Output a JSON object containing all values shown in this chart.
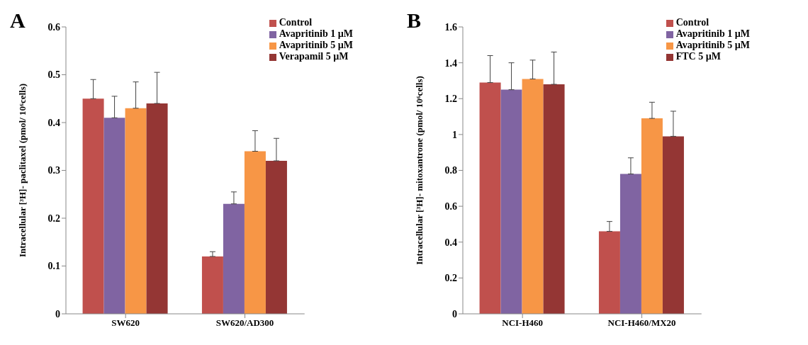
{
  "chart_data": [
    {
      "type": "bar",
      "title": "A",
      "ylabel": "Intracellular [³H]- paclitaxel (pmol/ 10⁶cells)",
      "categories": [
        "SW620",
        "SW620/AD300"
      ],
      "ylim": [
        0,
        0.6
      ],
      "yticks": [
        0,
        0.1,
        0.2,
        0.3,
        0.4,
        0.5,
        0.6
      ],
      "grid": false,
      "legend": "top right",
      "series": [
        {
          "name": "Control",
          "color": "#c0504d",
          "values": [
            0.45,
            0.12
          ],
          "errors": [
            [
              0.45,
              0.49
            ],
            [
              0.12,
              0.13
            ]
          ]
        },
        {
          "name": "Avapritinib 1 µM",
          "color": "#8064a2",
          "values": [
            0.41,
            0.23
          ],
          "errors": [
            [
              0.41,
              0.455
            ],
            [
              0.23,
              0.255
            ]
          ]
        },
        {
          "name": "Avapritinib 5 µM",
          "color": "#f79646",
          "values": [
            0.43,
            0.34
          ],
          "errors": [
            [
              0.43,
              0.485
            ],
            [
              0.34,
              0.383
            ]
          ]
        },
        {
          "name": "Verapamil 5 µM",
          "color": "#943634",
          "values": [
            0.44,
            0.32
          ],
          "errors": [
            [
              0.44,
              0.505
            ],
            [
              0.32,
              0.367
            ]
          ]
        }
      ]
    },
    {
      "type": "bar",
      "title": "B",
      "ylabel": "Intracellular [³H]- mitoxantrone (pmol/ 10⁶cells)",
      "categories": [
        "NCI-H460",
        "NCI-H460/MX20"
      ],
      "ylim": [
        0,
        1.6
      ],
      "yticks": [
        0,
        0.2,
        0.4,
        0.6,
        0.8,
        1,
        1.2,
        1.4,
        1.6
      ],
      "grid": false,
      "legend": "top right",
      "series": [
        {
          "name": "Control",
          "color": "#c0504d",
          "values": [
            1.29,
            0.46
          ],
          "errors": [
            [
              1.29,
              1.44
            ],
            [
              0.46,
              0.515
            ]
          ]
        },
        {
          "name": "Avapritinib 1 µM",
          "color": "#8064a2",
          "values": [
            1.25,
            0.78
          ],
          "errors": [
            [
              1.25,
              1.4
            ],
            [
              0.78,
              0.87
            ]
          ]
        },
        {
          "name": "Avapritinib 5 µM",
          "color": "#f79646",
          "values": [
            1.31,
            1.09
          ],
          "errors": [
            [
              1.31,
              1.415
            ],
            [
              1.09,
              1.18
            ]
          ]
        },
        {
          "name": "FTC 5 µM",
          "color": "#943634",
          "values": [
            1.28,
            0.99
          ],
          "errors": [
            [
              1.28,
              1.46
            ],
            [
              0.99,
              1.13
            ]
          ]
        }
      ]
    }
  ]
}
